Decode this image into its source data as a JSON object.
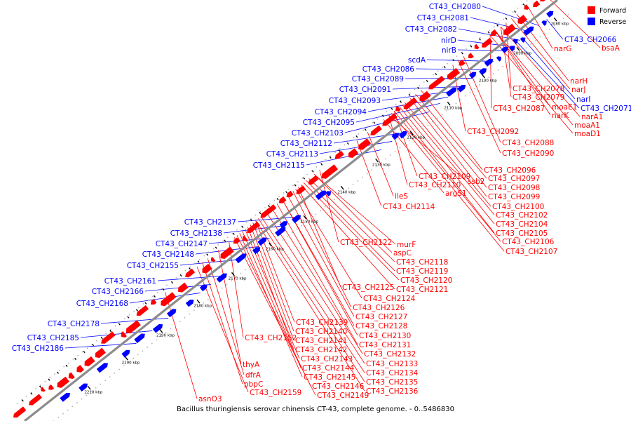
{
  "legend": [
    {
      "label": "Forward",
      "color": "#ff0000"
    },
    {
      "label": "Reverse",
      "color": "#0000ff"
    }
  ],
  "colors": {
    "forward": "#ff0000",
    "reverse": "#0000ff",
    "backbone": "#8c8c8c"
  },
  "caption": "Bacillus thuringiensis serovar chinensis CT-43, complete genome. - 0..5486830",
  "ticks": [
    "2080 kbp",
    "2090 kbp",
    "2100 kbp",
    "2110 kbp",
    "2120 kbp",
    "2130 kbp",
    "2140 kbp",
    "2150 kbp",
    "2160 kbp",
    "2170 kbp",
    "2180 kbp",
    "2190 kbp",
    "2200 kbp",
    "2210 kbp"
  ],
  "reverse_labels": [
    "CT43_CH2080",
    "CT43_CH2081",
    "CT43_CH2082",
    "nirD",
    "nirB",
    "scdA",
    "CT43_CH2086",
    "CT43_CH2089",
    "CT43_CH2091",
    "CT43_CH2093",
    "CT43_CH2094",
    "CT43_CH2095",
    "CT43_CH2103",
    "CT43_CH2112",
    "CT43_CH2113",
    "CT43_CH2115",
    "CT43_CH2137",
    "CT43_CH2138",
    "CT43_CH2147",
    "CT43_CH2148",
    "CT43_CH2155",
    "CT43_CH2161",
    "CT43_CH2166",
    "CT43_CH2168",
    "CT43_CH2178",
    "CT43_CH2185",
    "CT43_CH2186"
  ],
  "reverse_right_labels": [
    "CT43_CH2066",
    "narI",
    "CT43_CH2071"
  ],
  "forward_labels": [
    "bsaA",
    "narG",
    "narH",
    "narJ",
    "CT43_CH2078",
    "CT43_CH2079",
    "moaE1",
    "CT43_CH2087",
    "narK",
    "narA1",
    "moaA1",
    "moaD1",
    "CT43_CH2092",
    "CT43_CH2088",
    "CT43_CH2090",
    "CT43_CH2096",
    "CT43_CH2097",
    "CT43_CH2098",
    "CT43_CH2099",
    "CT43_CH2100",
    "CT43_CH2102",
    "CT43_CH2104",
    "CT43_CH2105",
    "CT43_CH2106",
    "CT43_CH2107",
    "CT43_CH2109",
    "ssb2",
    "CT43_CH2110",
    "argS1",
    "ileS",
    "CT43_CH2114",
    "CT43_CH2122",
    "murF",
    "aspC",
    "CT43_CH2118",
    "CT43_CH2119",
    "CT43_CH2120",
    "CT43_CH2121",
    "CT43_CH2125",
    "CT43_CH2124",
    "CT43_CH2126",
    "CT43_CH2127",
    "CT43_CH2128",
    "CT43_CH2139",
    "CT43_CH2140",
    "CT43_CH2152",
    "CT43_CH2130",
    "CT43_CH2131",
    "CT43_CH2141",
    "CT43_CH2142",
    "CT43_CH2132",
    "CT43_CH2143",
    "CT43_CH2133",
    "CT43_CH2144",
    "CT43_CH2134",
    "CT43_CH2145",
    "CT43_CH2135",
    "CT43_CH2146",
    "CT43_CH2136",
    "CT43_CH2149",
    "thyA",
    "dfrA",
    "pbpC",
    "CT43_CH2159",
    "asnO3"
  ]
}
